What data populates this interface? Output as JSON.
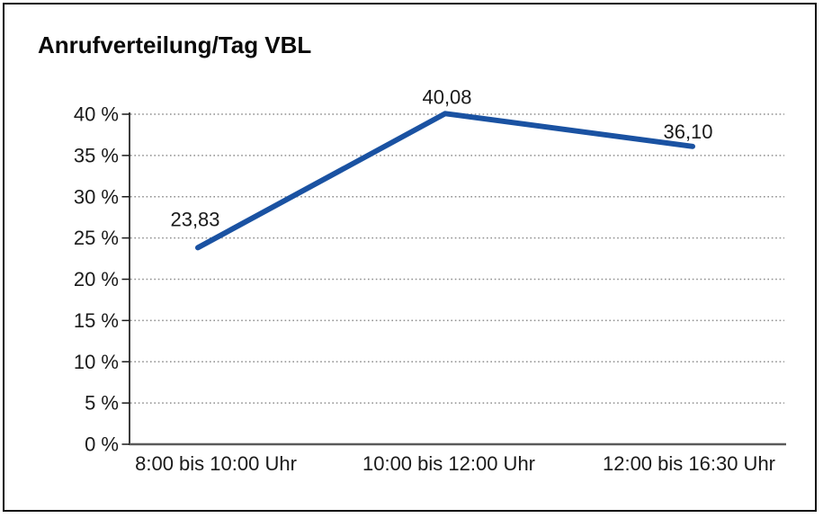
{
  "title": "Anrufverteilung/Tag VBL",
  "chart_data": {
    "type": "line",
    "title": "Anrufverteilung/Tag VBL",
    "categories": [
      "8:00 bis 10:00 Uhr",
      "10:00 bis 12:00 Uhr",
      "12:00 bis 16:30 Uhr"
    ],
    "values": [
      23.83,
      40.08,
      36.1
    ],
    "point_labels": [
      "23,83",
      "40,08",
      "36,10"
    ],
    "xlabel": "",
    "ylabel": "",
    "ylim": [
      0,
      40
    ],
    "y_tick_step": 5,
    "y_tick_labels": [
      "0 %",
      "5 %",
      "10 %",
      "15 %",
      "20 %",
      "25 %",
      "30 %",
      "35 %",
      "40 %"
    ],
    "grid": "horizontal-dotted",
    "legend_position": "none",
    "colors": {
      "line": "#1a52a2",
      "gridline": "#8f8f8f",
      "axis": "#1a1a1a",
      "baseline": "#5a5a5a",
      "text": "#1a1a1a"
    }
  }
}
